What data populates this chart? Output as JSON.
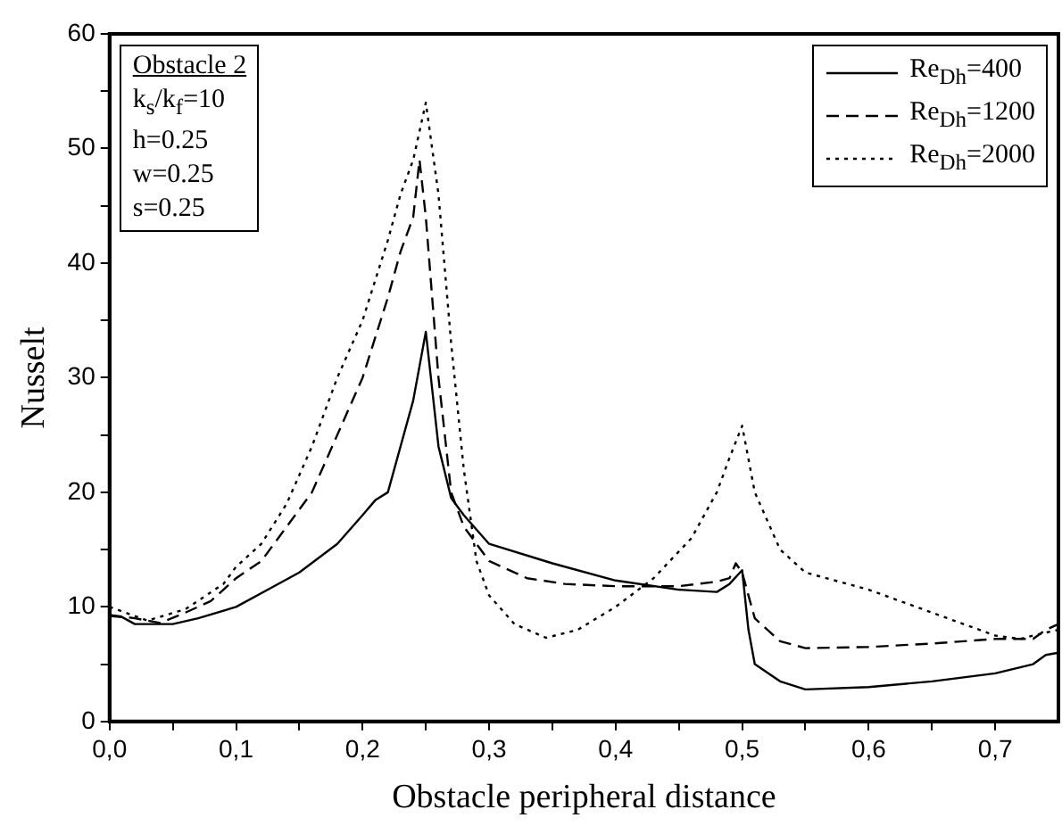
{
  "chart_data": {
    "type": "line",
    "xlabel": "Obstacle peripheral distance",
    "ylabel": "Nusselt",
    "annotations": [
      "Obstacle 2",
      "k$_{s}$/k$_{f}$=10",
      "h=0.25",
      "w=0.25",
      "s=0.25"
    ],
    "xlim": [
      0,
      0.75
    ],
    "ylim": [
      0,
      60
    ],
    "xticks": [
      {
        "value": 0,
        "label": "0,0"
      },
      {
        "value": 0.05,
        "label": null
      },
      {
        "value": 0.1,
        "label": "0,1"
      },
      {
        "value": 0.15,
        "label": null
      },
      {
        "value": 0.2,
        "label": "0,2"
      },
      {
        "value": 0.25,
        "label": null
      },
      {
        "value": 0.3,
        "label": "0,3"
      },
      {
        "value": 0.35,
        "label": null
      },
      {
        "value": 0.4,
        "label": "0,4"
      },
      {
        "value": 0.45,
        "label": null
      },
      {
        "value": 0.5,
        "label": "0,5"
      },
      {
        "value": 0.55,
        "label": null
      },
      {
        "value": 0.6,
        "label": "0,6"
      },
      {
        "value": 0.65,
        "label": null
      },
      {
        "value": 0.7,
        "label": "0,7"
      }
    ],
    "yticks": [
      0,
      {
        "value": 5,
        "label": null
      },
      10,
      {
        "value": 15,
        "label": null
      },
      20,
      {
        "value": 25,
        "label": null
      },
      30,
      {
        "value": 35,
        "label": null
      },
      40,
      {
        "value": 45,
        "label": null
      },
      50,
      {
        "value": 55,
        "label": null
      },
      60
    ],
    "grid": false,
    "legend": "top right",
    "marker": "none",
    "series": [
      {
        "name": "Re$_{Dh}$=400",
        "color": "#000000",
        "line_style": "solid",
        "x": [
          0,
          0.01,
          0.02,
          0.05,
          0.07,
          0.1,
          0.13,
          0.15,
          0.18,
          0.2,
          0.21,
          0.22,
          0.23,
          0.24,
          0.25,
          0.26,
          0.27,
          0.28,
          0.3,
          0.35,
          0.4,
          0.45,
          0.48,
          0.49,
          0.5,
          0.505,
          0.51,
          0.53,
          0.55,
          0.6,
          0.65,
          0.7,
          0.73,
          0.74,
          0.75
        ],
        "values": [
          9.2,
          9.1,
          8.5,
          8.5,
          9,
          10,
          11.8,
          13,
          15.5,
          18,
          19.3,
          20,
          24,
          28,
          34,
          24,
          19.5,
          18,
          15.5,
          13.8,
          12.3,
          11.5,
          11.3,
          12,
          13.2,
          8,
          5,
          3.5,
          2.8,
          3,
          3.5,
          4.2,
          5,
          5.8,
          6
        ]
      },
      {
        "name": "Re$_{Dh}$=1200",
        "color": "#000000",
        "line_style": "dashed",
        "x": [
          0,
          0.02,
          0.04,
          0.06,
          0.08,
          0.1,
          0.12,
          0.14,
          0.16,
          0.18,
          0.2,
          0.22,
          0.23,
          0.24,
          0.245,
          0.25,
          0.26,
          0.27,
          0.28,
          0.3,
          0.33,
          0.36,
          0.4,
          0.45,
          0.48,
          0.49,
          0.495,
          0.5,
          0.51,
          0.53,
          0.55,
          0.6,
          0.65,
          0.7,
          0.73,
          0.74,
          0.75
        ],
        "values": [
          9.3,
          9,
          8.6,
          9.5,
          10.5,
          12.5,
          14,
          17,
          20,
          25,
          30,
          37,
          41,
          44,
          49,
          44,
          30,
          20,
          17,
          14,
          12.5,
          12,
          11.8,
          11.8,
          12.2,
          12.5,
          13.8,
          13,
          9,
          7,
          6.4,
          6.5,
          6.8,
          7.2,
          7.2,
          8,
          8.5
        ]
      },
      {
        "name": "Re$_{Dh}$=2000",
        "color": "#000000",
        "line_style": "dotted",
        "x": [
          0,
          0.03,
          0.06,
          0.09,
          0.1,
          0.12,
          0.14,
          0.16,
          0.18,
          0.2,
          0.22,
          0.23,
          0.24,
          0.25,
          0.26,
          0.27,
          0.28,
          0.29,
          0.3,
          0.32,
          0.345,
          0.37,
          0.4,
          0.43,
          0.46,
          0.48,
          0.49,
          0.5,
          0.51,
          0.53,
          0.55,
          0.6,
          0.65,
          0.7,
          0.72,
          0.73,
          0.75
        ],
        "values": [
          10,
          8.8,
          9.8,
          12,
          13.5,
          15.5,
          19,
          24,
          30,
          35,
          42,
          46,
          49,
          54,
          46,
          33,
          22,
          14,
          11,
          8.5,
          7.3,
          8,
          10,
          12.5,
          16,
          20,
          23,
          25.8,
          20,
          15,
          13,
          11.5,
          9.5,
          7.5,
          7.2,
          7.5,
          8
        ]
      }
    ]
  }
}
